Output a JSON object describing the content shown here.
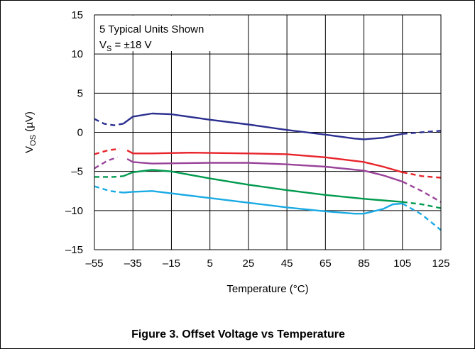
{
  "caption": "Figure 3. Offset Voltage vs Temperature",
  "chart_data": {
    "type": "line",
    "xlabel": "Temperature (°C)",
    "ylabel": {
      "base": "V",
      "sub": "OS",
      "rest": " (µV)"
    },
    "x_ticks": [
      "–55",
      "–35",
      "–15",
      "5",
      "25",
      "45",
      "65",
      "85",
      "105",
      "125"
    ],
    "x_tick_values": [
      -55,
      -35,
      -15,
      5,
      25,
      45,
      65,
      85,
      105,
      125
    ],
    "y_ticks": [
      "15",
      "10",
      "5",
      "0",
      "–5",
      "–10",
      "–15"
    ],
    "y_tick_values": [
      15,
      10,
      5,
      0,
      -5,
      -10,
      -15
    ],
    "xlim": [
      -55,
      125
    ],
    "ylim": [
      -15,
      15
    ],
    "grid": true,
    "annotation": {
      "line1": "5 Typical Units Shown",
      "line2_base": "V",
      "line2_sub": "S",
      "line2_rest": " = ±18 V"
    },
    "dashed_below": -40,
    "dashed_above": 105,
    "series": [
      {
        "color": "#2b2f8f",
        "points": [
          [
            -55,
            1.7
          ],
          [
            -50,
            1.1
          ],
          [
            -45,
            0.9
          ],
          [
            -40,
            1.1
          ],
          [
            -35,
            2.0
          ],
          [
            -25,
            2.4
          ],
          [
            -15,
            2.3
          ],
          [
            5,
            1.6
          ],
          [
            25,
            1.0
          ],
          [
            45,
            0.3
          ],
          [
            65,
            -0.3
          ],
          [
            80,
            -0.8
          ],
          [
            85,
            -0.9
          ],
          [
            95,
            -0.7
          ],
          [
            105,
            -0.2
          ],
          [
            115,
            0.0
          ],
          [
            125,
            0.2
          ]
        ]
      },
      {
        "color": "#e8232a",
        "points": [
          [
            -55,
            -2.8
          ],
          [
            -48,
            -2.3
          ],
          [
            -42,
            -2.1
          ],
          [
            -38,
            -2.3
          ],
          [
            -35,
            -2.7
          ],
          [
            -25,
            -2.7
          ],
          [
            -5,
            -2.6
          ],
          [
            25,
            -2.7
          ],
          [
            45,
            -2.8
          ],
          [
            65,
            -3.2
          ],
          [
            85,
            -3.8
          ],
          [
            95,
            -4.4
          ],
          [
            105,
            -5.1
          ],
          [
            115,
            -5.6
          ],
          [
            125,
            -5.8
          ]
        ]
      },
      {
        "color": "#99449a",
        "points": [
          [
            -55,
            -4.6
          ],
          [
            -48,
            -3.6
          ],
          [
            -43,
            -3.2
          ],
          [
            -38,
            -3.4
          ],
          [
            -35,
            -3.8
          ],
          [
            -25,
            -4.0
          ],
          [
            5,
            -3.9
          ],
          [
            25,
            -3.9
          ],
          [
            45,
            -4.1
          ],
          [
            65,
            -4.4
          ],
          [
            85,
            -4.9
          ],
          [
            95,
            -5.5
          ],
          [
            105,
            -6.3
          ],
          [
            115,
            -7.5
          ],
          [
            125,
            -8.9
          ]
        ]
      },
      {
        "color": "#009a4e",
        "points": [
          [
            -55,
            -5.7
          ],
          [
            -45,
            -5.7
          ],
          [
            -40,
            -5.6
          ],
          [
            -35,
            -5.1
          ],
          [
            -25,
            -4.8
          ],
          [
            -15,
            -5.0
          ],
          [
            5,
            -5.9
          ],
          [
            25,
            -6.7
          ],
          [
            45,
            -7.4
          ],
          [
            65,
            -8.0
          ],
          [
            85,
            -8.5
          ],
          [
            95,
            -8.7
          ],
          [
            105,
            -8.9
          ],
          [
            115,
            -9.2
          ],
          [
            125,
            -9.7
          ]
        ]
      },
      {
        "color": "#1aaae4",
        "points": [
          [
            -55,
            -6.9
          ],
          [
            -47,
            -7.5
          ],
          [
            -40,
            -7.7
          ],
          [
            -35,
            -7.6
          ],
          [
            -25,
            -7.5
          ],
          [
            -15,
            -7.8
          ],
          [
            5,
            -8.4
          ],
          [
            25,
            -9.0
          ],
          [
            45,
            -9.6
          ],
          [
            65,
            -10.1
          ],
          [
            80,
            -10.4
          ],
          [
            85,
            -10.4
          ],
          [
            95,
            -9.8
          ],
          [
            100,
            -9.2
          ],
          [
            105,
            -9.1
          ],
          [
            115,
            -10.5
          ],
          [
            125,
            -12.5
          ]
        ]
      }
    ]
  }
}
